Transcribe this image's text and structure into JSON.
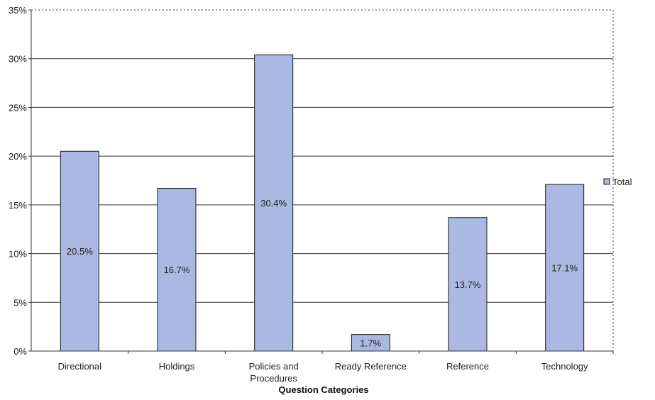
{
  "chart_data": {
    "type": "bar",
    "title": "",
    "xlabel": "Question Categories",
    "ylabel": "",
    "categories": [
      "Directional",
      "Holdings",
      "Policies and Procedures",
      "Ready Reference",
      "Reference",
      "Technology"
    ],
    "category_lines": [
      [
        "Directional"
      ],
      [
        "Holdings"
      ],
      [
        "Policies and",
        "Procedures"
      ],
      [
        "Ready Reference"
      ],
      [
        "Reference"
      ],
      [
        "Technology"
      ]
    ],
    "series": [
      {
        "name": "Total",
        "values": [
          20.5,
          16.7,
          30.4,
          1.7,
          13.7,
          17.1
        ],
        "data_labels": [
          "20.5%",
          "16.7%",
          "30.4%",
          "1.7%",
          "13.7%",
          "17.1%"
        ]
      }
    ],
    "ylim": [
      0,
      35
    ],
    "yticks": [
      0,
      5,
      10,
      15,
      20,
      25,
      30,
      35
    ],
    "ytick_labels": [
      "0%",
      "5%",
      "10%",
      "15%",
      "20%",
      "25%",
      "30%",
      "35%"
    ],
    "grid": true,
    "legend": {
      "position": "right",
      "entries": [
        "Total"
      ]
    },
    "colors": {
      "bar_fill": "#aab8e2",
      "bar_stroke": "#1a1a1a",
      "grid": "#333333",
      "axis": "#333333"
    }
  }
}
